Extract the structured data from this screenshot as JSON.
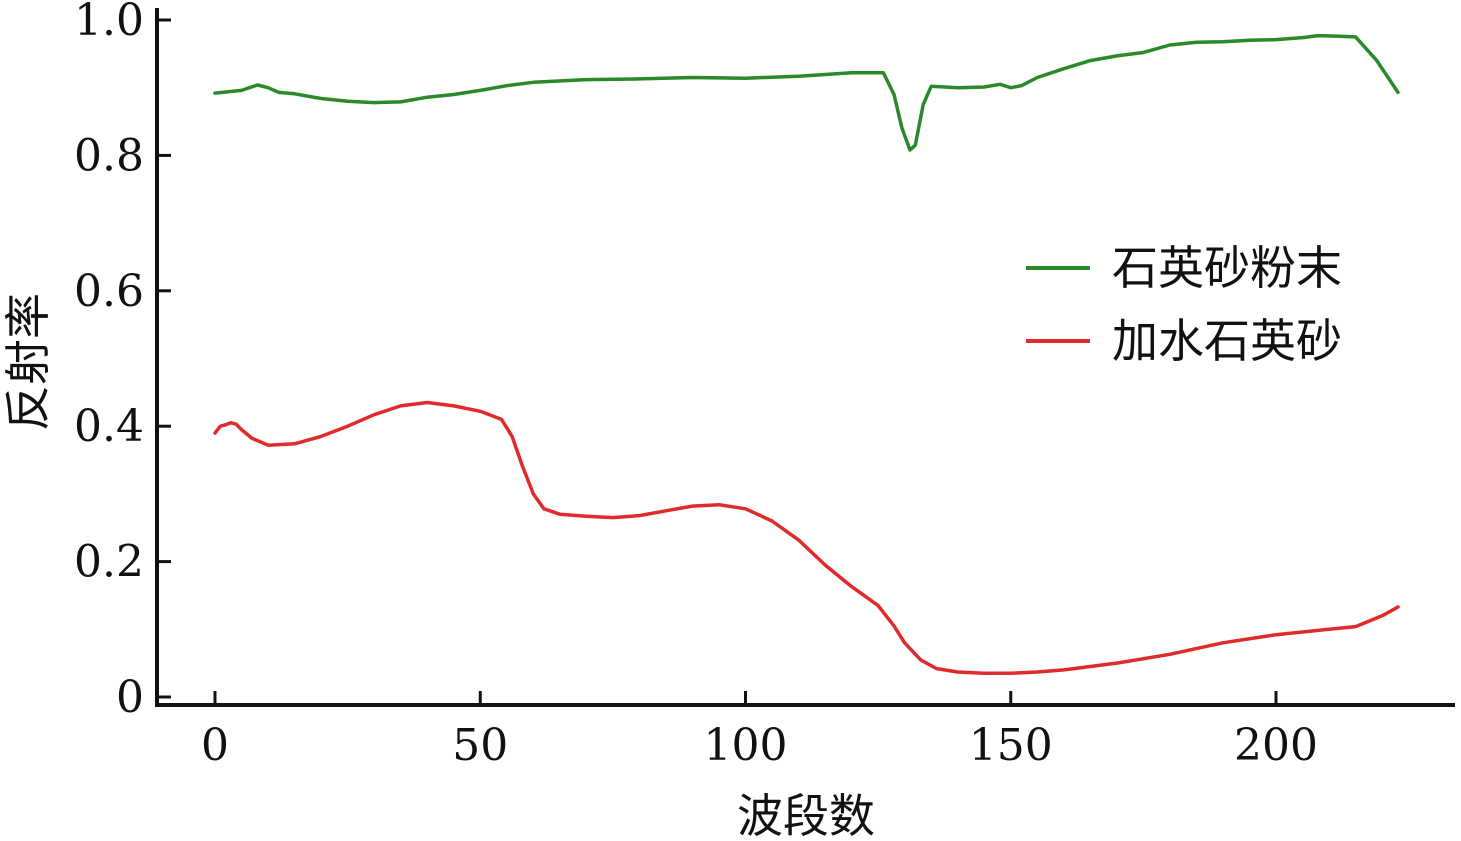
{
  "chart_data": {
    "type": "line",
    "title": "",
    "xlabel": "波段数",
    "ylabel": "反射率",
    "xlim": [
      0,
      224
    ],
    "ylim": [
      0,
      1.0
    ],
    "x_ticks": [
      0,
      50,
      100,
      150,
      200
    ],
    "x_tick_labels": [
      "0",
      "50",
      "100",
      "150",
      "200"
    ],
    "y_ticks": [
      0,
      0.2,
      0.4,
      0.6,
      0.8,
      1.0
    ],
    "y_tick_labels": [
      "0",
      "0.2",
      "0.4",
      "0.6",
      "0.8",
      "1.0"
    ],
    "grid": false,
    "legend_position": "right-middle",
    "series": [
      {
        "name": "石英砂粉末",
        "color": "#2a8a2a",
        "points": [
          [
            0,
            0.892
          ],
          [
            5,
            0.896
          ],
          [
            8,
            0.904
          ],
          [
            10,
            0.9
          ],
          [
            12,
            0.893
          ],
          [
            15,
            0.891
          ],
          [
            20,
            0.884
          ],
          [
            25,
            0.88
          ],
          [
            30,
            0.878
          ],
          [
            35,
            0.879
          ],
          [
            40,
            0.886
          ],
          [
            45,
            0.89
          ],
          [
            50,
            0.896
          ],
          [
            55,
            0.903
          ],
          [
            60,
            0.908
          ],
          [
            70,
            0.912
          ],
          [
            80,
            0.913
          ],
          [
            90,
            0.915
          ],
          [
            100,
            0.914
          ],
          [
            110,
            0.917
          ],
          [
            120,
            0.922
          ],
          [
            126,
            0.922
          ],
          [
            128,
            0.89
          ],
          [
            129.5,
            0.84
          ],
          [
            131,
            0.808
          ],
          [
            132,
            0.815
          ],
          [
            133.5,
            0.875
          ],
          [
            135,
            0.902
          ],
          [
            140,
            0.9
          ],
          [
            145,
            0.901
          ],
          [
            148,
            0.905
          ],
          [
            150,
            0.9
          ],
          [
            152,
            0.903
          ],
          [
            155,
            0.915
          ],
          [
            160,
            0.928
          ],
          [
            165,
            0.94
          ],
          [
            170,
            0.947
          ],
          [
            175,
            0.952
          ],
          [
            180,
            0.963
          ],
          [
            185,
            0.967
          ],
          [
            190,
            0.968
          ],
          [
            195,
            0.97
          ],
          [
            200,
            0.971
          ],
          [
            205,
            0.974
          ],
          [
            208,
            0.977
          ],
          [
            212,
            0.976
          ],
          [
            215,
            0.975
          ],
          [
            219,
            0.94
          ],
          [
            223,
            0.893
          ]
        ]
      },
      {
        "name": "加水石英砂",
        "color": "#e02b2b",
        "points": [
          [
            0,
            0.39
          ],
          [
            1,
            0.4
          ],
          [
            2,
            0.402
          ],
          [
            3,
            0.405
          ],
          [
            4,
            0.403
          ],
          [
            5,
            0.395
          ],
          [
            7,
            0.382
          ],
          [
            10,
            0.372
          ],
          [
            15,
            0.374
          ],
          [
            20,
            0.385
          ],
          [
            25,
            0.4
          ],
          [
            30,
            0.417
          ],
          [
            35,
            0.43
          ],
          [
            40,
            0.435
          ],
          [
            45,
            0.43
          ],
          [
            50,
            0.422
          ],
          [
            54,
            0.41
          ],
          [
            56,
            0.385
          ],
          [
            58,
            0.34
          ],
          [
            60,
            0.3
          ],
          [
            62,
            0.278
          ],
          [
            65,
            0.27
          ],
          [
            70,
            0.267
          ],
          [
            75,
            0.265
          ],
          [
            80,
            0.268
          ],
          [
            85,
            0.275
          ],
          [
            90,
            0.282
          ],
          [
            95,
            0.284
          ],
          [
            100,
            0.278
          ],
          [
            105,
            0.26
          ],
          [
            110,
            0.232
          ],
          [
            115,
            0.195
          ],
          [
            120,
            0.163
          ],
          [
            125,
            0.135
          ],
          [
            128,
            0.105
          ],
          [
            130,
            0.08
          ],
          [
            133,
            0.055
          ],
          [
            136,
            0.042
          ],
          [
            140,
            0.037
          ],
          [
            145,
            0.035
          ],
          [
            150,
            0.035
          ],
          [
            155,
            0.037
          ],
          [
            160,
            0.04
          ],
          [
            170,
            0.05
          ],
          [
            180,
            0.063
          ],
          [
            190,
            0.08
          ],
          [
            200,
            0.092
          ],
          [
            210,
            0.1
          ],
          [
            215,
            0.104
          ],
          [
            220,
            0.12
          ],
          [
            223,
            0.133
          ]
        ]
      }
    ]
  }
}
